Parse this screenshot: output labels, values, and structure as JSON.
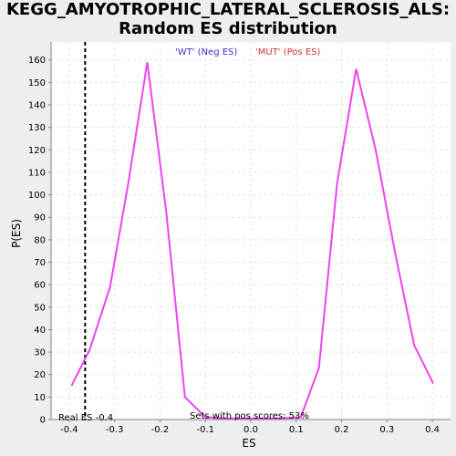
{
  "chart_data": {
    "type": "line",
    "title": "KEGG_AMYOTROPHIC_LATERAL_SCLEROSIS_ALS:",
    "subtitle": "Random ES distribution",
    "xlabel": "ES",
    "ylabel": "P(ES)",
    "xlim": [
      -0.44,
      0.44
    ],
    "ylim": [
      0,
      168
    ],
    "x_ticks": [
      -0.4,
      -0.3,
      -0.2,
      -0.1,
      0.0,
      0.1,
      0.2,
      0.3,
      0.4
    ],
    "x_tick_labels": [
      "-0.4",
      "-0.3",
      "-0.2",
      "-0.1",
      "0.0",
      "0.1",
      "0.2",
      "0.3",
      "0.4"
    ],
    "y_ticks": [
      0,
      10,
      20,
      30,
      40,
      50,
      60,
      70,
      80,
      90,
      100,
      110,
      120,
      130,
      140,
      150,
      160
    ],
    "grid": true,
    "legend": [
      {
        "label": "'WT' (Neg ES)",
        "color": "#3333cc"
      },
      {
        "label": "'MUT' (Pos ES)",
        "color": "#cc3333"
      }
    ],
    "series": [
      {
        "color": "#ee44ee",
        "x": [
          -0.395,
          -0.355,
          -0.31,
          -0.27,
          -0.228,
          -0.186,
          -0.145,
          -0.1,
          -0.06,
          -0.02,
          0.02,
          0.06,
          0.11,
          0.15,
          0.19,
          0.232,
          0.275,
          0.318,
          0.36,
          0.402
        ],
        "y": [
          15,
          31,
          59,
          105,
          159,
          92,
          10,
          1,
          0.5,
          0.5,
          0.5,
          0.5,
          1,
          23,
          105,
          156,
          120,
          74,
          33,
          16
        ]
      }
    ],
    "real_es_line": {
      "x": -0.365,
      "color": "#000000"
    },
    "annotations": {
      "real_es": "Real ES -0.4",
      "pos_scores": "Sets with pos scores: 53%"
    }
  }
}
